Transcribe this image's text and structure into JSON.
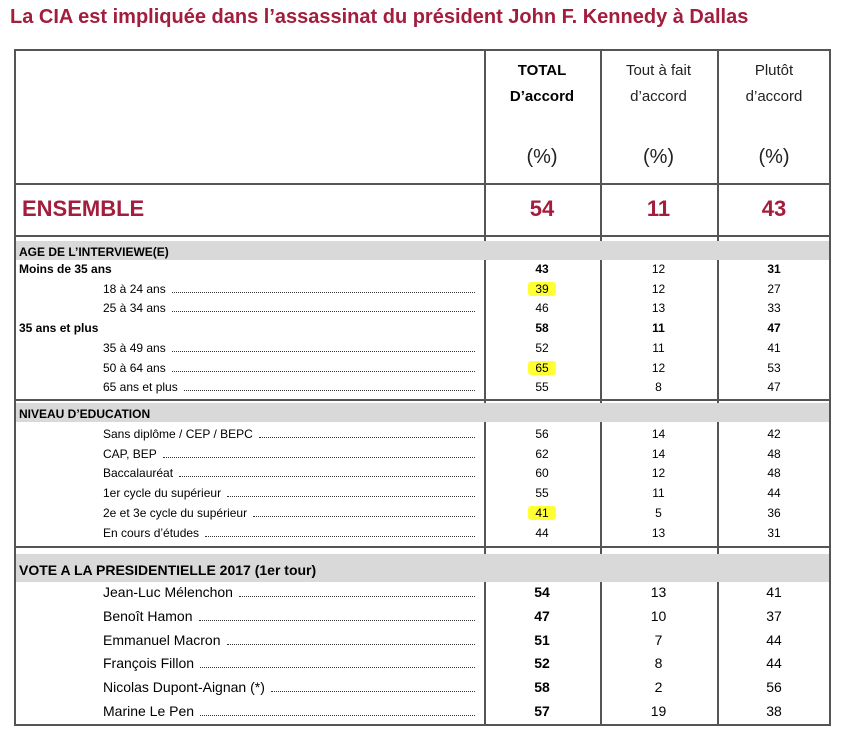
{
  "title": "La CIA est impliquée dans l’assassinat du président John F. Kennedy à Dallas",
  "columns": [
    {
      "line1": "TOTAL",
      "line2": "D’accord",
      "unit": "(%)"
    },
    {
      "line1": "Tout à fait",
      "line2": "d’accord",
      "unit": "(%)"
    },
    {
      "line1": "Plutôt",
      "line2": "d’accord",
      "unit": "(%)"
    }
  ],
  "ensemble": {
    "label": "ENSEMBLE",
    "values": [
      "54",
      "11",
      "43"
    ]
  },
  "sections": [
    {
      "title": "AGE DE L’INTERVIEWE(E)",
      "rows": [
        {
          "label": "Moins de 35 ans",
          "group": true,
          "values": [
            "43",
            "12",
            "31"
          ]
        },
        {
          "label": "18 à 24 ans",
          "values": [
            "39",
            "12",
            "27"
          ],
          "highlight": true
        },
        {
          "label": "25 à 34 ans",
          "values": [
            "46",
            "13",
            "33"
          ]
        },
        {
          "label": "35 ans et plus",
          "group": true,
          "values": [
            "58",
            "11",
            "47"
          ]
        },
        {
          "label": "35 à 49 ans",
          "values": [
            "52",
            "11",
            "41"
          ]
        },
        {
          "label": "50 à 64 ans",
          "values": [
            "65",
            "12",
            "53"
          ],
          "highlight": true
        },
        {
          "label": "65 ans et plus",
          "values": [
            "55",
            "8",
            "47"
          ]
        }
      ]
    },
    {
      "title": "NIVEAU D’EDUCATION",
      "rows": [
        {
          "label": "Sans diplôme / CEP / BEPC",
          "values": [
            "56",
            "14",
            "42"
          ]
        },
        {
          "label": "CAP, BEP",
          "values": [
            "62",
            "14",
            "48"
          ]
        },
        {
          "label": "Baccalauréat",
          "values": [
            "60",
            "12",
            "48"
          ]
        },
        {
          "label": "1er cycle du supérieur",
          "values": [
            "55",
            "11",
            "44"
          ]
        },
        {
          "label": "2e et 3e cycle du supérieur",
          "values": [
            "41",
            "5",
            "36"
          ],
          "highlight": true
        },
        {
          "label": "En cours d’études",
          "values": [
            "44",
            "13",
            "31"
          ]
        }
      ]
    },
    {
      "title": "VOTE A LA PRESIDENTIELLE 2017 (1er tour)",
      "rows": [
        {
          "label": "Jean-Luc Mélenchon",
          "values": [
            "54",
            "13",
            "41"
          ]
        },
        {
          "label": "Benoît Hamon",
          "values": [
            "47",
            "10",
            "37"
          ]
        },
        {
          "label": "Emmanuel Macron",
          "values": [
            "51",
            "7",
            "44"
          ]
        },
        {
          "label": "François Fillon",
          "values": [
            "52",
            "8",
            "44"
          ]
        },
        {
          "label": "Nicolas Dupont-Aignan (*)",
          "values": [
            "58",
            "2",
            "56"
          ]
        },
        {
          "label": "Marine Le Pen",
          "values": [
            "57",
            "19",
            "38"
          ]
        }
      ]
    }
  ]
}
